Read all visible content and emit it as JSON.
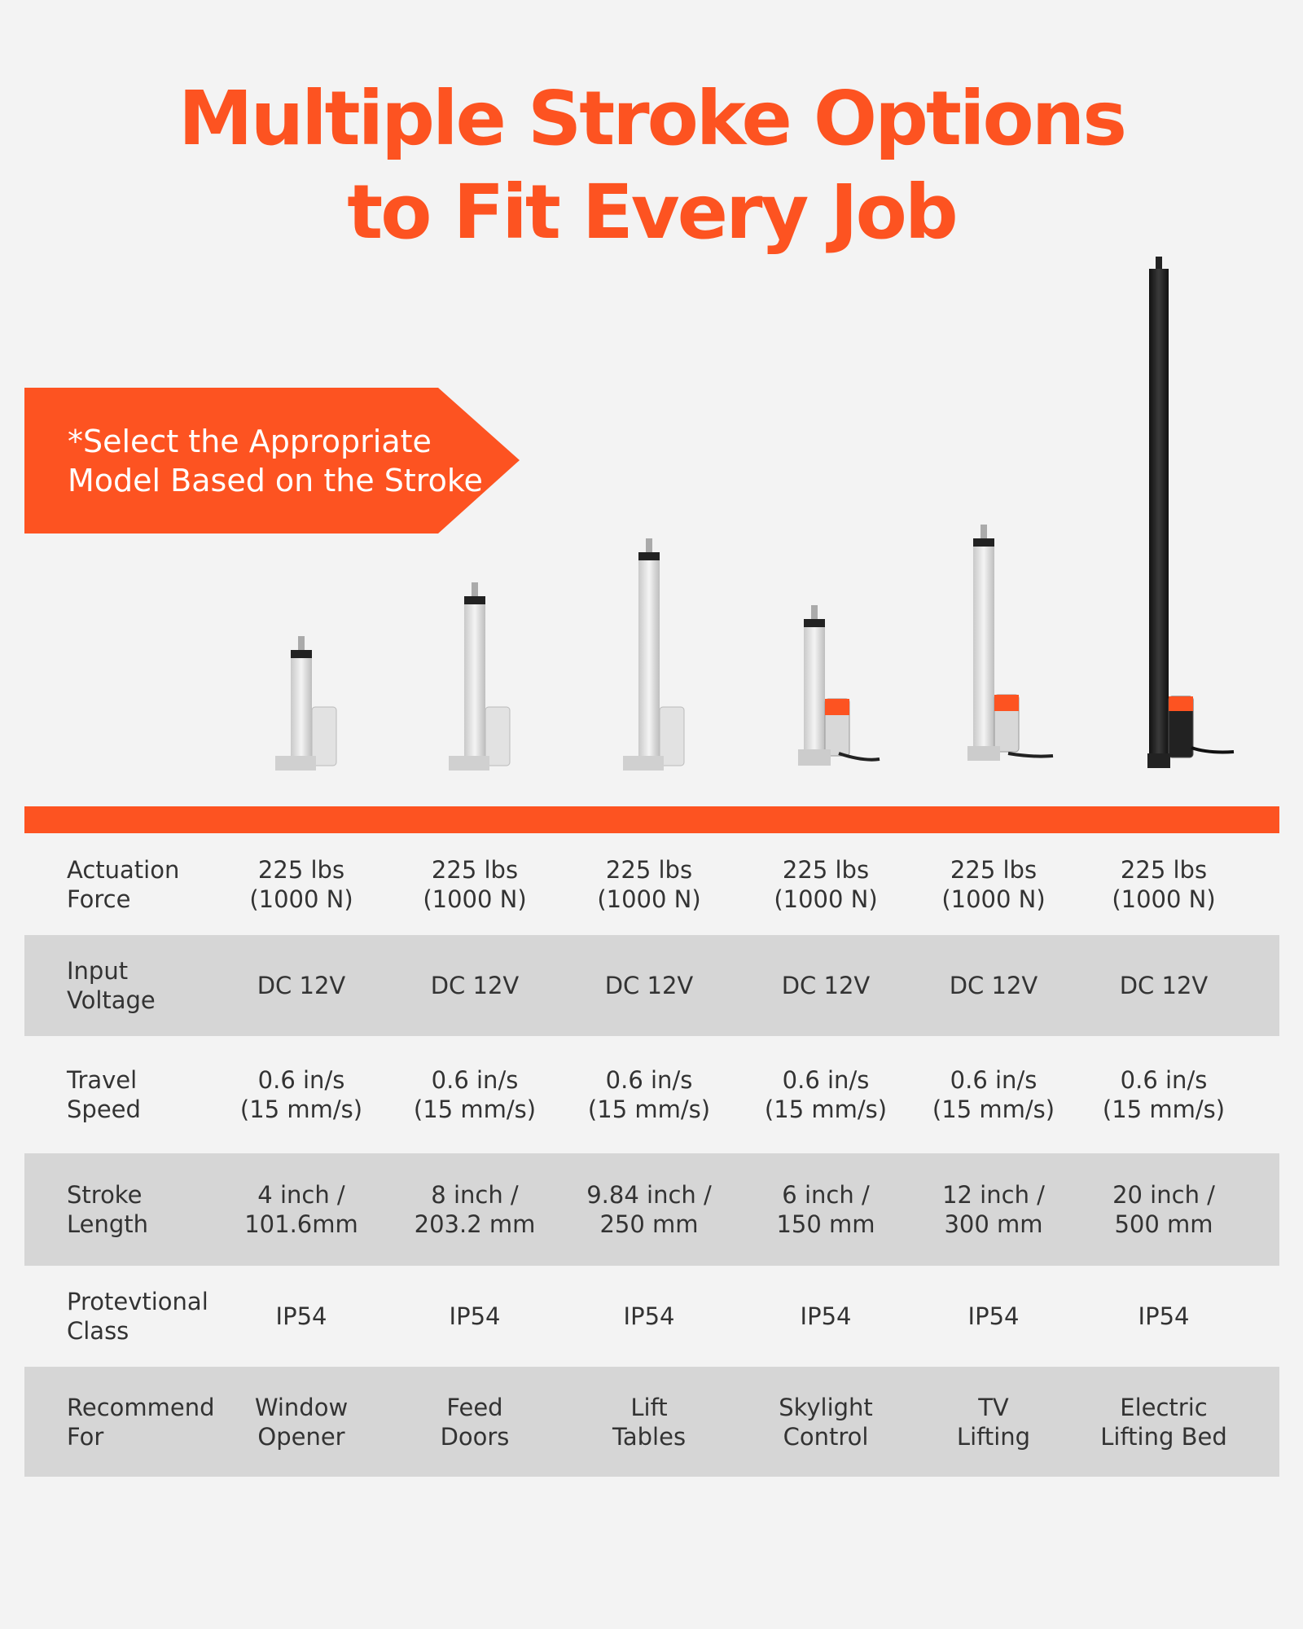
{
  "header": {
    "title": [
      "Multiple Stroke Options",
      "to Fit Every Job"
    ]
  },
  "banner": {
    "lines": [
      "*Select the Appropriate",
      "Model Based on the Stroke"
    ]
  },
  "table": {
    "rows": [
      {
        "label": [
          "Actuation",
          "Force"
        ],
        "cells": [
          [
            "225 lbs",
            "(1000 N)"
          ],
          [
            "225 lbs",
            "(1000 N)"
          ],
          [
            "225 lbs",
            "(1000 N)"
          ],
          [
            "225 lbs",
            "(1000 N)"
          ],
          [
            "225 lbs",
            "(1000 N)"
          ],
          [
            "225 lbs",
            "(1000 N)"
          ]
        ]
      },
      {
        "label": [
          "Input",
          "Voltage"
        ],
        "cells": [
          [
            "DC 12V"
          ],
          [
            "DC 12V"
          ],
          [
            "DC 12V"
          ],
          [
            "DC 12V"
          ],
          [
            "DC 12V"
          ],
          [
            "DC 12V"
          ]
        ]
      },
      {
        "label": [
          "Travel",
          "Speed"
        ],
        "cells": [
          [
            "0.6 in/s",
            "(15 mm/s)"
          ],
          [
            "0.6 in/s",
            "(15 mm/s)"
          ],
          [
            "0.6 in/s",
            "(15 mm/s)"
          ],
          [
            "0.6 in/s",
            "(15 mm/s)"
          ],
          [
            "0.6 in/s",
            "(15 mm/s)"
          ],
          [
            "0.6 in/s",
            "(15 mm/s)"
          ]
        ]
      },
      {
        "label": [
          "Stroke",
          "Length"
        ],
        "cells": [
          [
            "4 inch /",
            "101.6mm"
          ],
          [
            "8 inch /",
            "203.2 mm"
          ],
          [
            "9.84 inch /",
            "250 mm"
          ],
          [
            "6 inch /",
            "150 mm"
          ],
          [
            "12 inch /",
            "300 mm"
          ],
          [
            "20 inch /",
            "500 mm"
          ]
        ]
      },
      {
        "label": [
          "Protevtional",
          "Class"
        ],
        "cells": [
          [
            "IP54"
          ],
          [
            "IP54"
          ],
          [
            "IP54"
          ],
          [
            "IP54"
          ],
          [
            "IP54"
          ],
          [
            "IP54"
          ]
        ]
      },
      {
        "label": [
          "Recommend",
          "For"
        ],
        "cells": [
          [
            "Window",
            "Opener"
          ],
          [
            "Feed",
            "Doors"
          ],
          [
            "Lift",
            "Tables"
          ],
          [
            "Skylight",
            "Control"
          ],
          [
            "TV",
            "Lifting"
          ],
          [
            "Electric",
            "Lifting Bed"
          ]
        ]
      }
    ]
  }
}
